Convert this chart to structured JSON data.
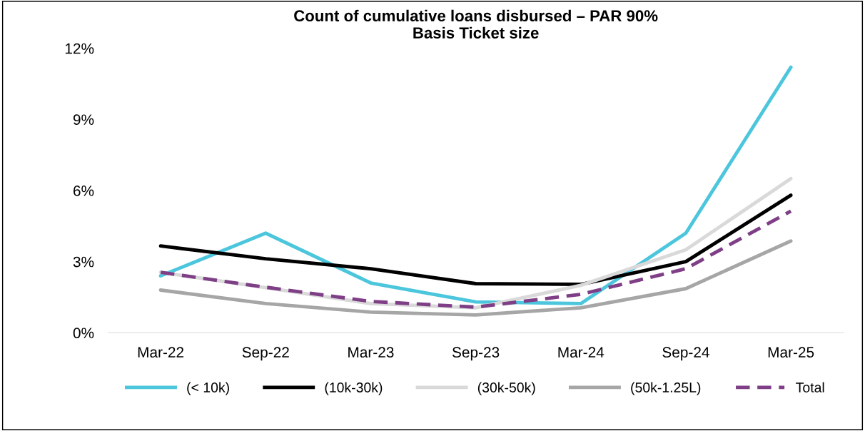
{
  "chart_data": {
    "type": "line",
    "title": "Count of cumulative loans disbursed – PAR 90%\nBasis Ticket size",
    "categories": [
      "Mar-22",
      "Sep-22",
      "Mar-23",
      "Sep-23",
      "Mar-24",
      "Sep-24",
      "Mar-25"
    ],
    "series": [
      {
        "name": "(< 10k)",
        "color": "#4bc6dc",
        "values": [
          2.4,
          4.2,
          2.1,
          1.3,
          1.23,
          4.2,
          11.2
        ]
      },
      {
        "name": "(10k-30k)",
        "color": "#000000",
        "values": [
          3.66,
          3.12,
          2.7,
          2.07,
          2.04,
          3.0,
          5.8
        ]
      },
      {
        "name": "(30k-50k)",
        "color": "#d9d9d9",
        "values": [
          2.55,
          1.9,
          1.23,
          1.05,
          2.0,
          3.5,
          6.5
        ]
      },
      {
        "name": "(50k-1.25L)",
        "color": "#a6a6a6",
        "values": [
          1.8,
          1.23,
          0.87,
          0.75,
          1.05,
          1.86,
          3.87
        ]
      },
      {
        "name": "Total",
        "color": "#7f3f87",
        "line_style": "dashed",
        "values": [
          2.55,
          1.92,
          1.32,
          1.08,
          1.62,
          2.7,
          5.13
        ]
      }
    ],
    "ylim": [
      0,
      12
    ],
    "yticks": [
      {
        "value": 0,
        "label": "0%"
      },
      {
        "value": 3,
        "label": "3%"
      },
      {
        "value": 6,
        "label": "6%"
      },
      {
        "value": 9,
        "label": "9%"
      },
      {
        "value": 12,
        "label": "12%"
      }
    ],
    "grid": false,
    "legend": "bottom",
    "marker": "none",
    "line_style": "solid"
  }
}
